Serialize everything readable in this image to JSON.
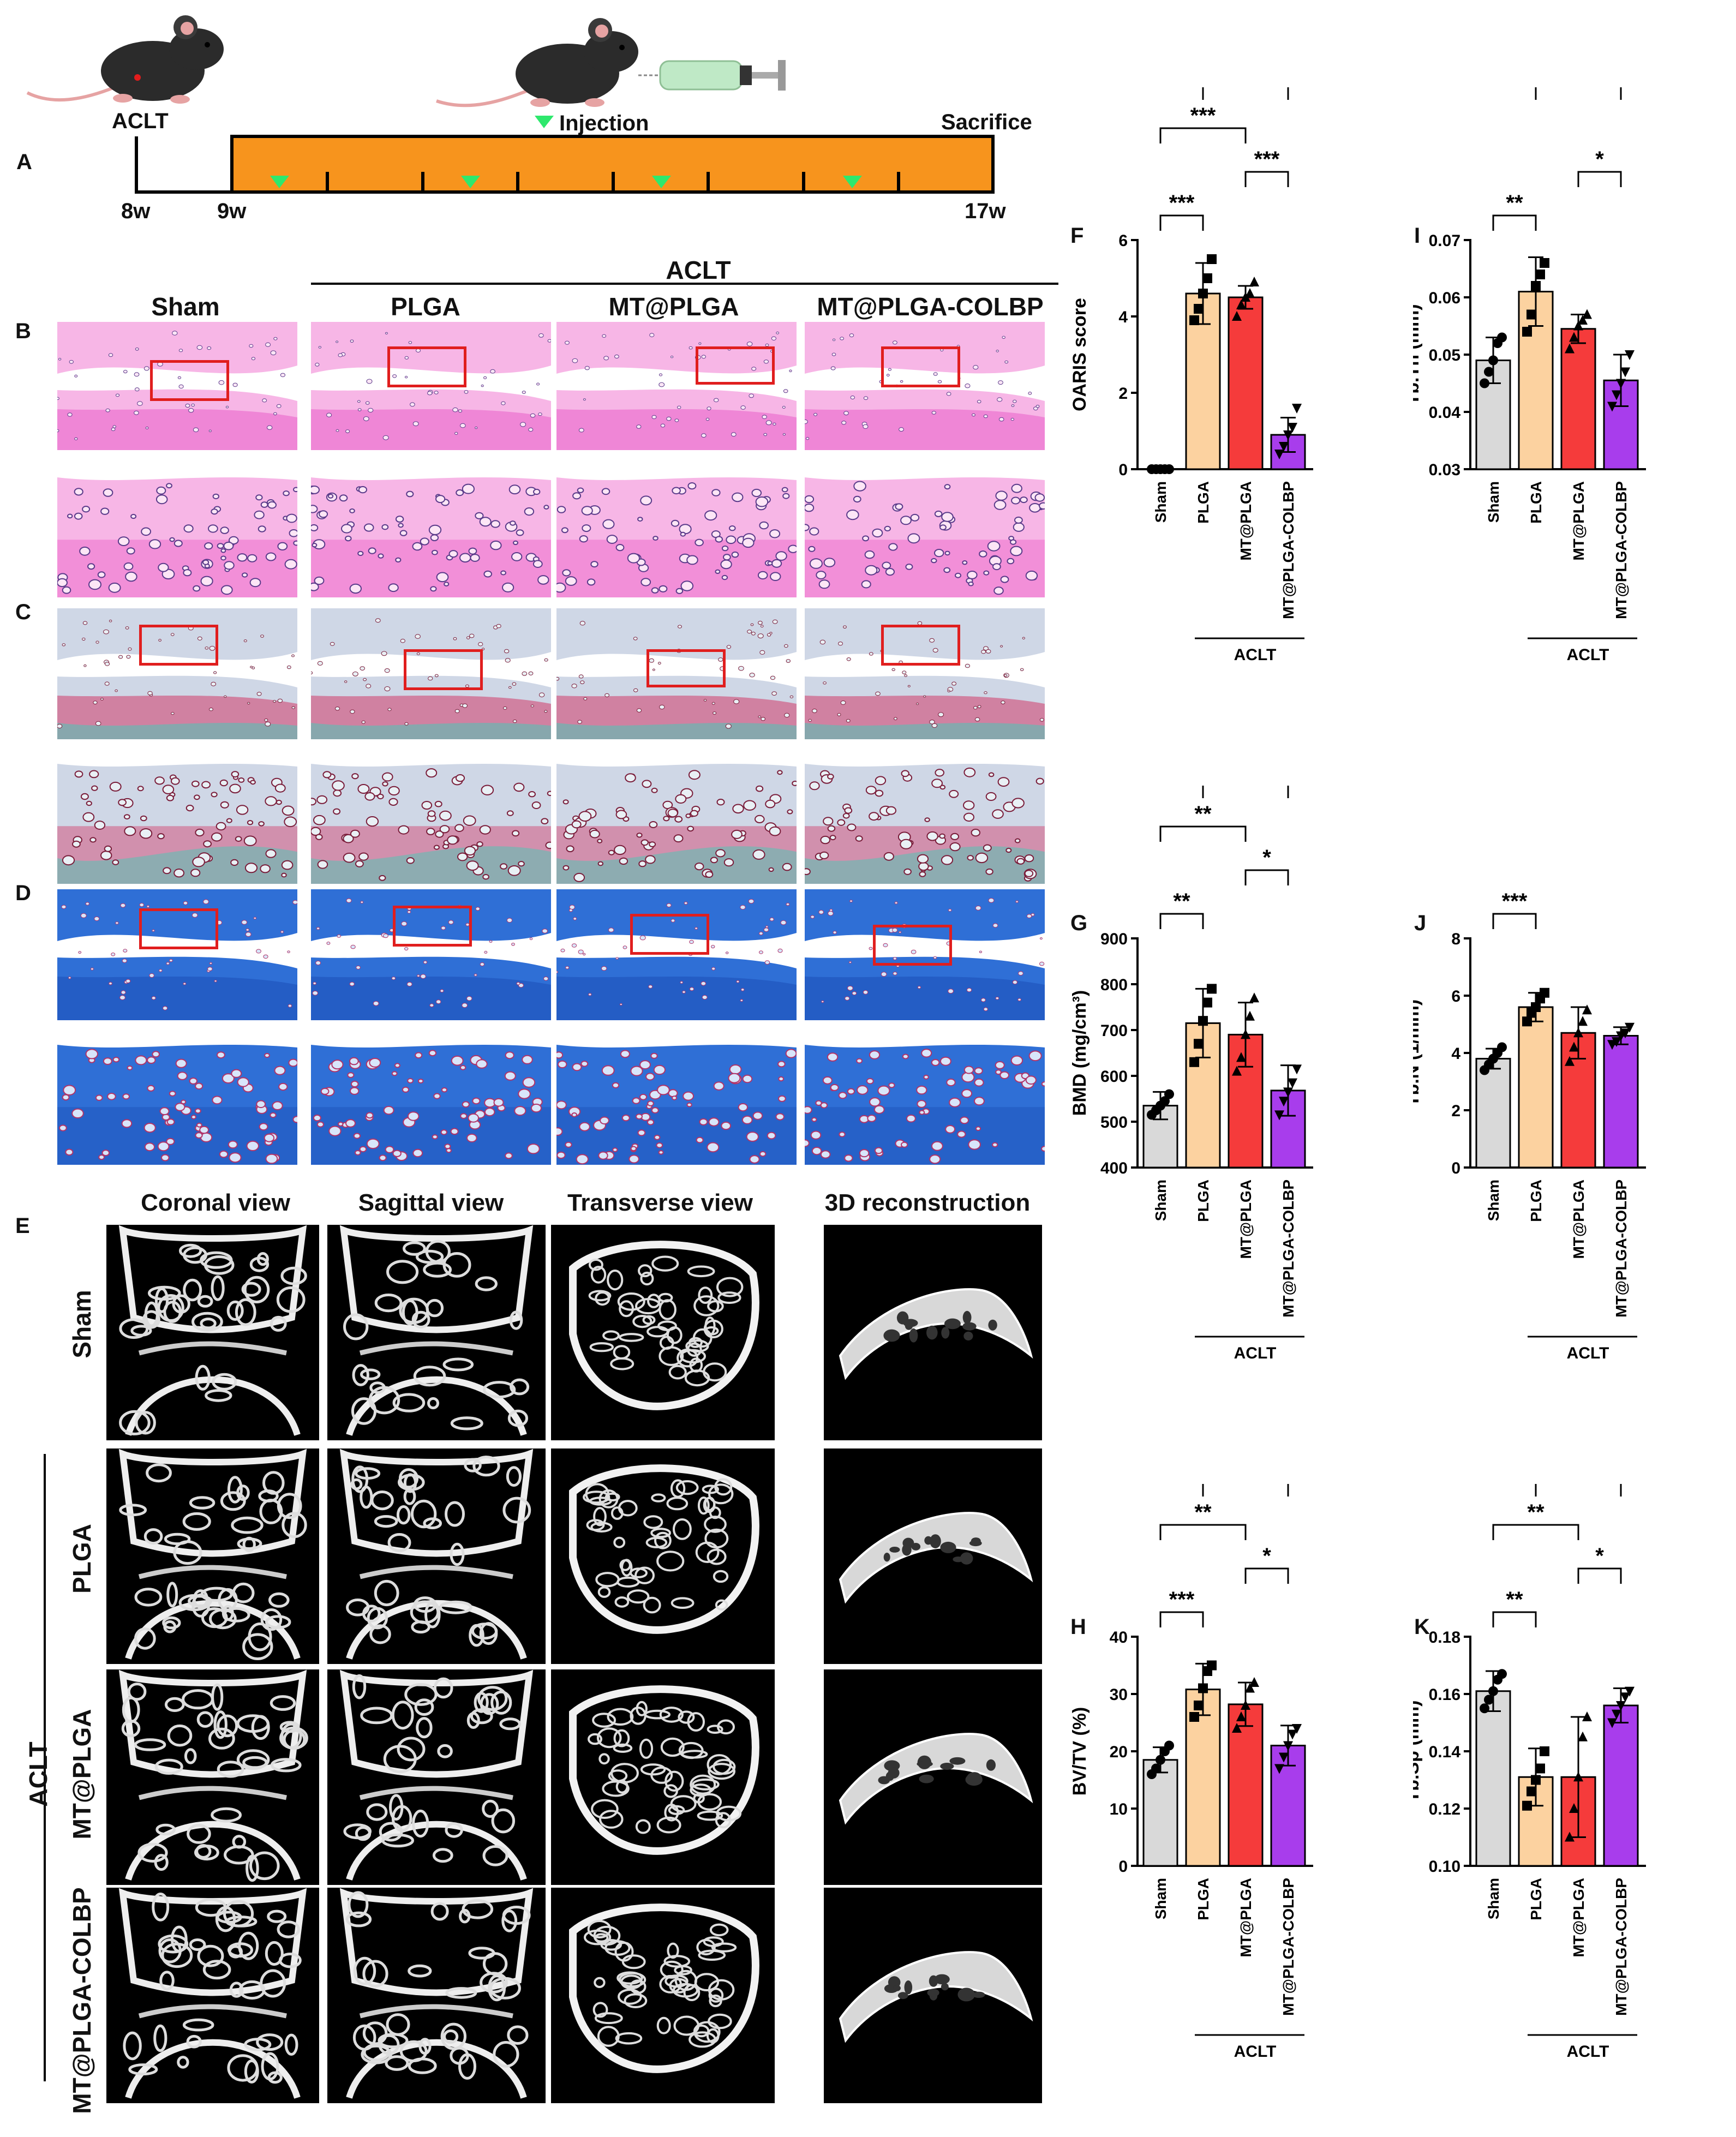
{
  "panel_letters": {
    "A": "A",
    "B": "B",
    "C": "C",
    "D": "D",
    "E": "E",
    "F": "F",
    "G": "G",
    "H": "H",
    "I": "I",
    "J": "J",
    "K": "K"
  },
  "timeline": {
    "aclt": "ACLT",
    "injection": "Injection",
    "sacrifice": "Sacrifice",
    "ticks": [
      "8w",
      "9w",
      "17w"
    ],
    "colors": {
      "bar": "#f7941d",
      "arrow": "#2ee86d"
    }
  },
  "histology": {
    "group_header": "ACLT",
    "columns": [
      "Sham",
      "PLGA",
      "MT@PLGA",
      "MT@PLGA-COLBP"
    ]
  },
  "microct": {
    "views": [
      "Coronal view",
      "Sagittal view",
      "Transverse view",
      "3D reconstruction"
    ],
    "rows": [
      "Sham",
      "PLGA",
      "MT@PLGA",
      "MT@PLGA-COLBP"
    ],
    "group_label": "ACLT"
  },
  "chart_data": [
    {
      "id": "F",
      "type": "bar",
      "ylabel": "OARIS score",
      "ylim": [
        0,
        6
      ],
      "yticks": [
        "0",
        "2",
        "4",
        "6"
      ],
      "categories": [
        "Sham",
        "PLGA",
        "MT@PLGA",
        "MT@PLGA-COLBP"
      ],
      "values": [
        0,
        4.6,
        4.5,
        0.9
      ],
      "errors": [
        0,
        0.8,
        0.3,
        0.45
      ],
      "points": [
        [
          0,
          0,
          0,
          0,
          0
        ],
        [
          3.9,
          4.2,
          4.6,
          5.0,
          5.5
        ],
        [
          4.0,
          4.3,
          4.5,
          4.6,
          4.9
        ],
        [
          0.4,
          0.6,
          0.9,
          1.1,
          1.6
        ]
      ],
      "brackets": [
        {
          "from": 0,
          "to": 1,
          "label": "***"
        },
        {
          "from": 2,
          "to": 3,
          "label": "***"
        },
        {
          "from": 0,
          "to": 2,
          "label": "***"
        },
        {
          "from": 1,
          "to": 3,
          "label": "***"
        }
      ],
      "group_label": "ACLT"
    },
    {
      "id": "I",
      "type": "bar",
      "ylabel": "Tb.Th (mm)",
      "ylim": [
        0.03,
        0.07
      ],
      "yticks": [
        "0.03",
        "0.04",
        "0.05",
        "0.06",
        "0.07"
      ],
      "categories": [
        "Sham",
        "PLGA",
        "MT@PLGA",
        "MT@PLGA-COLBP"
      ],
      "values": [
        0.049,
        0.061,
        0.0545,
        0.0455
      ],
      "errors": [
        0.004,
        0.006,
        0.0025,
        0.0045
      ],
      "points": [
        [
          0.045,
          0.047,
          0.049,
          0.052,
          0.053
        ],
        [
          0.054,
          0.057,
          0.062,
          0.064,
          0.066
        ],
        [
          0.051,
          0.053,
          0.055,
          0.056,
          0.057
        ],
        [
          0.041,
          0.043,
          0.045,
          0.047,
          0.05
        ]
      ],
      "brackets": [
        {
          "from": 0,
          "to": 1,
          "label": "**"
        },
        {
          "from": 2,
          "to": 3,
          "label": "*"
        },
        {
          "from": 1,
          "to": 3,
          "label": "***"
        }
      ],
      "group_label": "ACLT"
    },
    {
      "id": "G",
      "type": "bar",
      "ylabel": "BMD (mg/cm³)",
      "ylim": [
        400,
        900
      ],
      "yticks": [
        "400",
        "500",
        "600",
        "700",
        "800",
        "900"
      ],
      "categories": [
        "Sham",
        "PLGA",
        "MT@PLGA",
        "MT@PLGA-COLBP"
      ],
      "values": [
        535,
        715,
        690,
        568
      ],
      "errors": [
        30,
        75,
        70,
        55
      ],
      "points": [
        [
          515,
          525,
          535,
          545,
          560
        ],
        [
          630,
          670,
          720,
          760,
          790
        ],
        [
          610,
          640,
          690,
          730,
          770
        ],
        [
          515,
          545,
          565,
          585,
          615
        ]
      ],
      "brackets": [
        {
          "from": 0,
          "to": 1,
          "label": "**"
        },
        {
          "from": 2,
          "to": 3,
          "label": "*"
        },
        {
          "from": 0,
          "to": 2,
          "label": "**"
        },
        {
          "from": 1,
          "to": 3,
          "label": "**"
        }
      ],
      "group_label": "ACLT"
    },
    {
      "id": "J",
      "type": "bar",
      "ylabel": "Tb.N (1/mm)",
      "ylim": [
        0,
        8
      ],
      "yticks": [
        "0",
        "2",
        "4",
        "6",
        "8"
      ],
      "categories": [
        "Sham",
        "PLGA",
        "MT@PLGA",
        "MT@PLGA-COLBP"
      ],
      "values": [
        3.8,
        5.6,
        4.7,
        4.6
      ],
      "errors": [
        0.35,
        0.5,
        0.9,
        0.3
      ],
      "points": [
        [
          3.4,
          3.6,
          3.8,
          4.0,
          4.2
        ],
        [
          5.1,
          5.4,
          5.6,
          5.9,
          6.1
        ],
        [
          3.7,
          4.2,
          4.7,
          5.1,
          5.5
        ],
        [
          4.3,
          4.4,
          4.6,
          4.7,
          4.9
        ]
      ],
      "brackets": [
        {
          "from": 0,
          "to": 1,
          "label": "***"
        }
      ],
      "group_label": "ACLT"
    },
    {
      "id": "H",
      "type": "bar",
      "ylabel": "BV/TV (%)",
      "ylim": [
        0,
        40
      ],
      "yticks": [
        "0",
        "10",
        "20",
        "30",
        "40"
      ],
      "categories": [
        "Sham",
        "PLGA",
        "MT@PLGA",
        "MT@PLGA-COLBP"
      ],
      "values": [
        18.5,
        30.8,
        28.2,
        21
      ],
      "errors": [
        2.2,
        4.5,
        3.8,
        3.5
      ],
      "points": [
        [
          16,
          17,
          18.5,
          20,
          21
        ],
        [
          26,
          28,
          31,
          34,
          35
        ],
        [
          24,
          26,
          28,
          31,
          32
        ],
        [
          17,
          19,
          21,
          23,
          24
        ]
      ],
      "brackets": [
        {
          "from": 0,
          "to": 1,
          "label": "***"
        },
        {
          "from": 2,
          "to": 3,
          "label": "*"
        },
        {
          "from": 0,
          "to": 2,
          "label": "**"
        },
        {
          "from": 1,
          "to": 3,
          "label": "**"
        }
      ],
      "group_label": "ACLT"
    },
    {
      "id": "K",
      "type": "bar",
      "ylabel": "Tb.Sp (mm)",
      "ylim": [
        0.1,
        0.18
      ],
      "yticks": [
        "0.10",
        "0.12",
        "0.14",
        "0.16",
        "0.18"
      ],
      "categories": [
        "Sham",
        "PLGA",
        "MT@PLGA",
        "MT@PLGA-COLBP"
      ],
      "values": [
        0.161,
        0.131,
        0.131,
        0.156
      ],
      "errors": [
        0.007,
        0.01,
        0.021,
        0.006
      ],
      "points": [
        [
          0.155,
          0.158,
          0.161,
          0.165,
          0.167
        ],
        [
          0.121,
          0.126,
          0.13,
          0.134,
          0.14
        ],
        [
          0.11,
          0.12,
          0.131,
          0.145,
          0.152
        ],
        [
          0.15,
          0.153,
          0.156,
          0.159,
          0.161
        ]
      ],
      "brackets": [
        {
          "from": 0,
          "to": 1,
          "label": "**"
        },
        {
          "from": 2,
          "to": 3,
          "label": "*"
        },
        {
          "from": 0,
          "to": 2,
          "label": "**"
        },
        {
          "from": 1,
          "to": 3,
          "label": "*"
        }
      ],
      "group_label": "ACLT"
    }
  ],
  "colors": {
    "sham": "#d9d9d9",
    "plga": "#fcd2a0",
    "mt_plga": "#f53b3b",
    "mt_plga_colbp": "#a83dec"
  }
}
